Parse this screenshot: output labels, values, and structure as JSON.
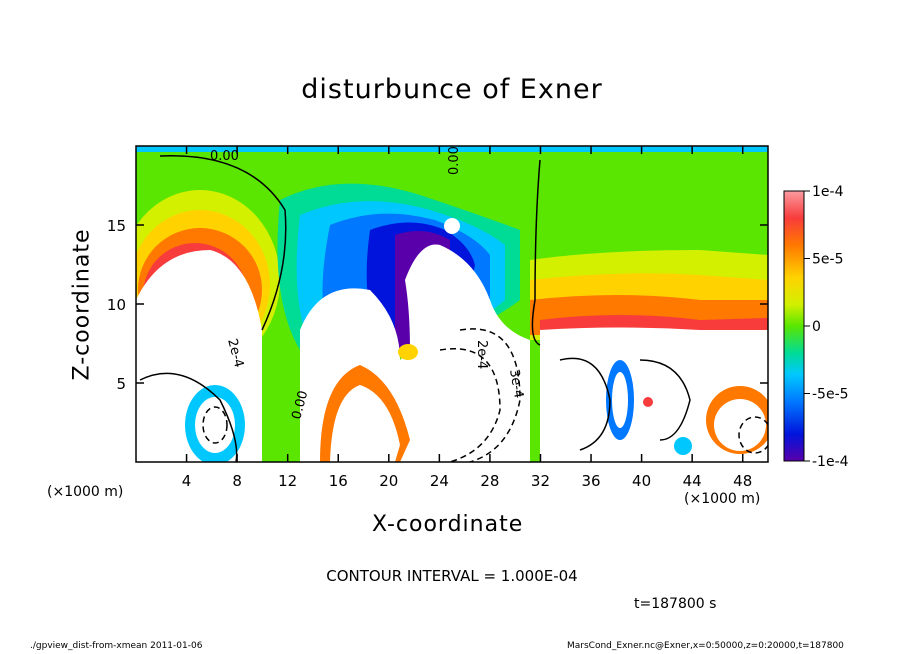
{
  "title": "disturbunce of Exner",
  "xlabel": "X-coordinate",
  "ylabel": "Z-coordinate",
  "x_unit": "(×1000 m)",
  "x_unit_right": "(×1000 m)",
  "contour_interval": "CONTOUR INTERVAL = 1.000E-04",
  "time_label": "t=187800 s",
  "footer_left": "./gpview_dist-from-xmean  2011-01-06",
  "footer_right": "MarsCond_Exner.nc@Exner,x=0:50000,z=0:20000,t=187800",
  "chart_data": {
    "type": "heatmap",
    "title": "disturbunce of Exner",
    "xlabel": "X-coordinate",
    "ylabel": "Z-coordinate",
    "xlim": [
      0,
      50
    ],
    "ylim": [
      0,
      20
    ],
    "x_ticks": [
      4,
      8,
      12,
      16,
      20,
      24,
      28,
      32,
      36,
      40,
      44,
      48
    ],
    "y_ticks": [
      5,
      10,
      15
    ],
    "colorbar": {
      "range": [
        -0.0001,
        0.0001
      ],
      "tick_labels": [
        "1e-4",
        "5e-5",
        "0",
        "-5e-5",
        "-1e-4"
      ],
      "tick_values": [
        0.0001,
        5e-05,
        0,
        -5e-05,
        -0.0001
      ],
      "colors": [
        "#fa9aa0",
        "#f83c3c",
        "#ff7800",
        "#ffd200",
        "#d2f000",
        "#5ae600",
        "#00dc96",
        "#00c8ff",
        "#0078ff",
        "#0014dc",
        "#5a00aa"
      ]
    },
    "contour_labels": [
      "0.00",
      "0.00",
      "2e-4",
      "2e-4",
      "0.00",
      "3e-4"
    ],
    "grid": false
  }
}
